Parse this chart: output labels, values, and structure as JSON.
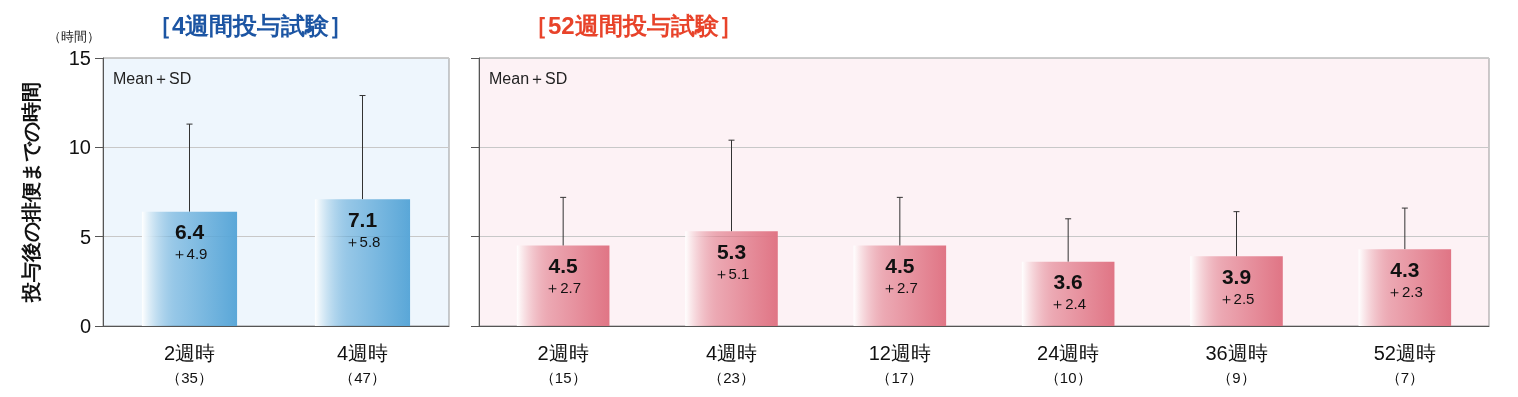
{
  "chart_data": [
    {
      "type": "bar",
      "title": "［4週間投与試験］",
      "ylabel": "投与後の排便までの時間",
      "annotations": [
        "（時間）",
        "Mean＋SD"
      ],
      "categories": [
        "2週時（35）",
        "4週時（47）"
      ],
      "values": [
        6.4,
        7.1
      ],
      "errors": [
        [
          6.4,
          11.3
        ],
        [
          7.1,
          12.9
        ]
      ],
      "value_labels": [
        "6.4\n＋4.9",
        "7.1\n＋5.8"
      ],
      "color": "#5aa7d8",
      "ylim": [
        0,
        15
      ],
      "yticks": [
        0,
        5,
        10,
        15
      ],
      "grid": "y"
    },
    {
      "type": "bar",
      "title": "［52週間投与試験］",
      "annotations": [
        "Mean＋SD"
      ],
      "categories": [
        "2週時（15）",
        "4週時（23）",
        "12週時（17）",
        "24週時（10）",
        "36週時（9）",
        "52週時（7）"
      ],
      "values": [
        4.5,
        5.3,
        4.5,
        3.6,
        3.9,
        4.3
      ],
      "errors": [
        [
          4.5,
          7.2
        ],
        [
          5.3,
          10.4
        ],
        [
          4.5,
          7.2
        ],
        [
          3.6,
          6.0
        ],
        [
          3.9,
          6.4
        ],
        [
          4.3,
          6.6
        ]
      ],
      "value_labels": [
        "4.5\n＋2.7",
        "5.3\n＋5.1",
        "4.5\n＋2.7",
        "3.6\n＋2.4",
        "3.9\n＋2.5",
        "4.3\n＋2.3"
      ],
      "color": "#e07585",
      "ylim": [
        0,
        15
      ],
      "yticks": [
        0,
        5,
        10,
        15
      ],
      "grid": "y",
      "tick_labels": "x"
    }
  ]
}
